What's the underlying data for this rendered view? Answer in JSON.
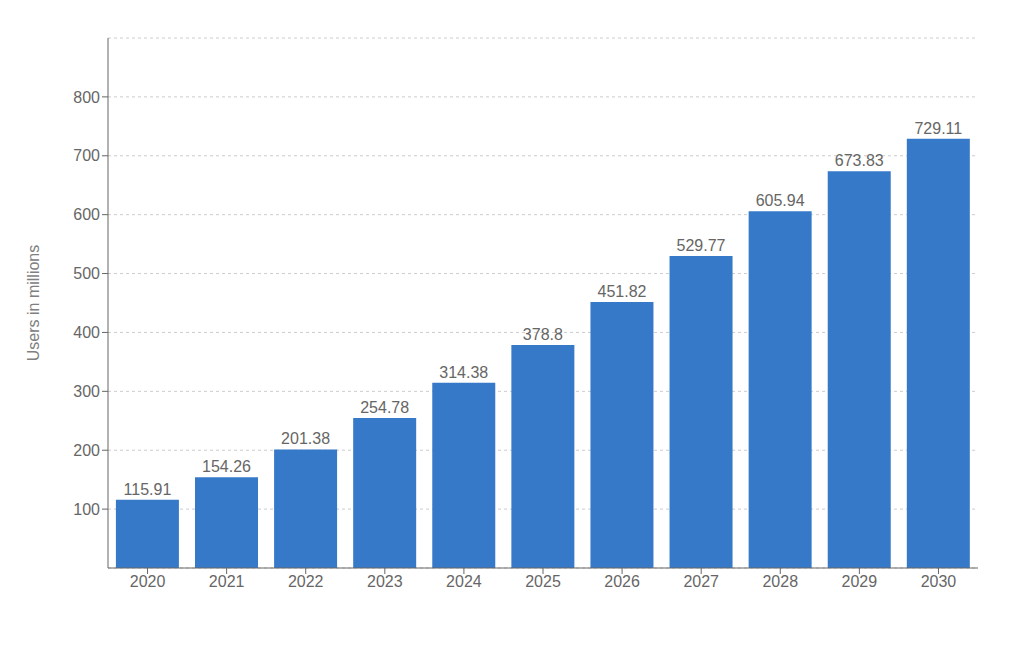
{
  "chart_data": {
    "type": "bar",
    "y_label": "Users in millions",
    "categories": [
      "2020",
      "2021",
      "2022",
      "2023",
      "2024",
      "2025",
      "2026",
      "2027",
      "2028",
      "2029",
      "2030"
    ],
    "values": [
      115.91,
      154.26,
      201.38,
      254.78,
      314.38,
      378.8,
      451.82,
      529.77,
      605.94,
      673.83,
      729.11
    ],
    "color": "#3579c8",
    "ylim": [
      0,
      900
    ],
    "yticks": [
      100,
      200,
      300,
      400,
      500,
      600,
      700,
      800
    ],
    "grid": true,
    "data_labels": true
  }
}
